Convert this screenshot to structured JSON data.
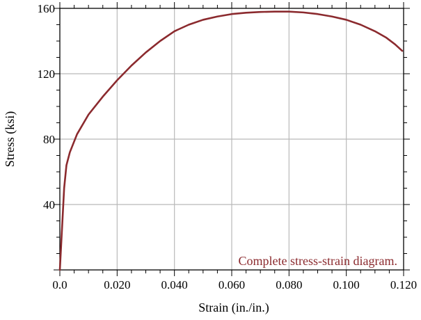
{
  "chart_data": {
    "type": "line",
    "xlabel": "Strain (in./in.)",
    "ylabel": "Stress (ksi)",
    "xlim": [
      0,
      0.12
    ],
    "ylim": [
      0,
      160
    ],
    "x_ticks": [
      0.0,
      0.02,
      0.04,
      0.06,
      0.08,
      0.1,
      0.12
    ],
    "x_tick_labels": [
      "0.0",
      "0.020",
      "0.040",
      "0.060",
      "0.080",
      "0.100",
      "0.120"
    ],
    "y_ticks": [
      40,
      80,
      120,
      160
    ],
    "y_tick_labels": [
      "40",
      "80",
      "120",
      "160"
    ],
    "grid": true,
    "annotation": "Complete stress-strain diagram.",
    "series": [
      {
        "color": "#8b2a2e",
        "x": [
          0.0,
          0.0015,
          0.0023,
          0.0035,
          0.006,
          0.01,
          0.015,
          0.02,
          0.025,
          0.03,
          0.035,
          0.04,
          0.045,
          0.05,
          0.055,
          0.06,
          0.065,
          0.07,
          0.075,
          0.08,
          0.085,
          0.09,
          0.095,
          0.1,
          0.105,
          0.11,
          0.114,
          0.117,
          0.1195
        ],
        "y": [
          0,
          50,
          64,
          72,
          83,
          95,
          106,
          116,
          125,
          133,
          140,
          146,
          150,
          153,
          155,
          156.5,
          157.3,
          157.8,
          158,
          158,
          157.5,
          156.5,
          155,
          153,
          150,
          146,
          142,
          138,
          134
        ]
      }
    ]
  }
}
